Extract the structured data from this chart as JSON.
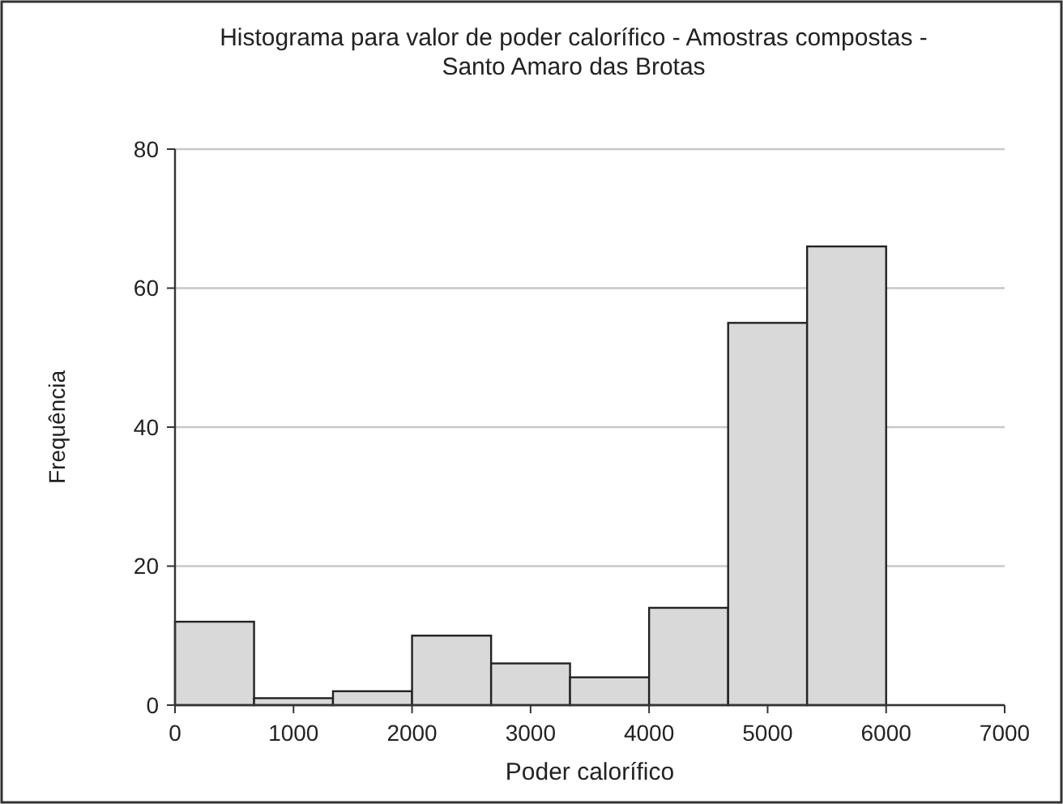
{
  "chart_data": {
    "type": "histogram",
    "title": "Histograma para valor de poder calorífico - Amostras compostas -\nSanto Amaro das Brotas",
    "xlabel": "Poder calorífico",
    "ylabel": "Frequência",
    "bins": [
      0,
      667,
      1333,
      2000,
      2667,
      3333,
      4000,
      4667,
      5333,
      6000
    ],
    "values": [
      12,
      1,
      2,
      10,
      6,
      4,
      14,
      55,
      66
    ],
    "color": "#d9d9d9",
    "xlim": [
      0,
      7000
    ],
    "xticks": [
      0,
      1000,
      2000,
      3000,
      4000,
      5000,
      6000,
      7000
    ],
    "ylim": [
      0,
      80
    ],
    "yticks": [
      0,
      20,
      40,
      60,
      80
    ],
    "grid": "y"
  }
}
